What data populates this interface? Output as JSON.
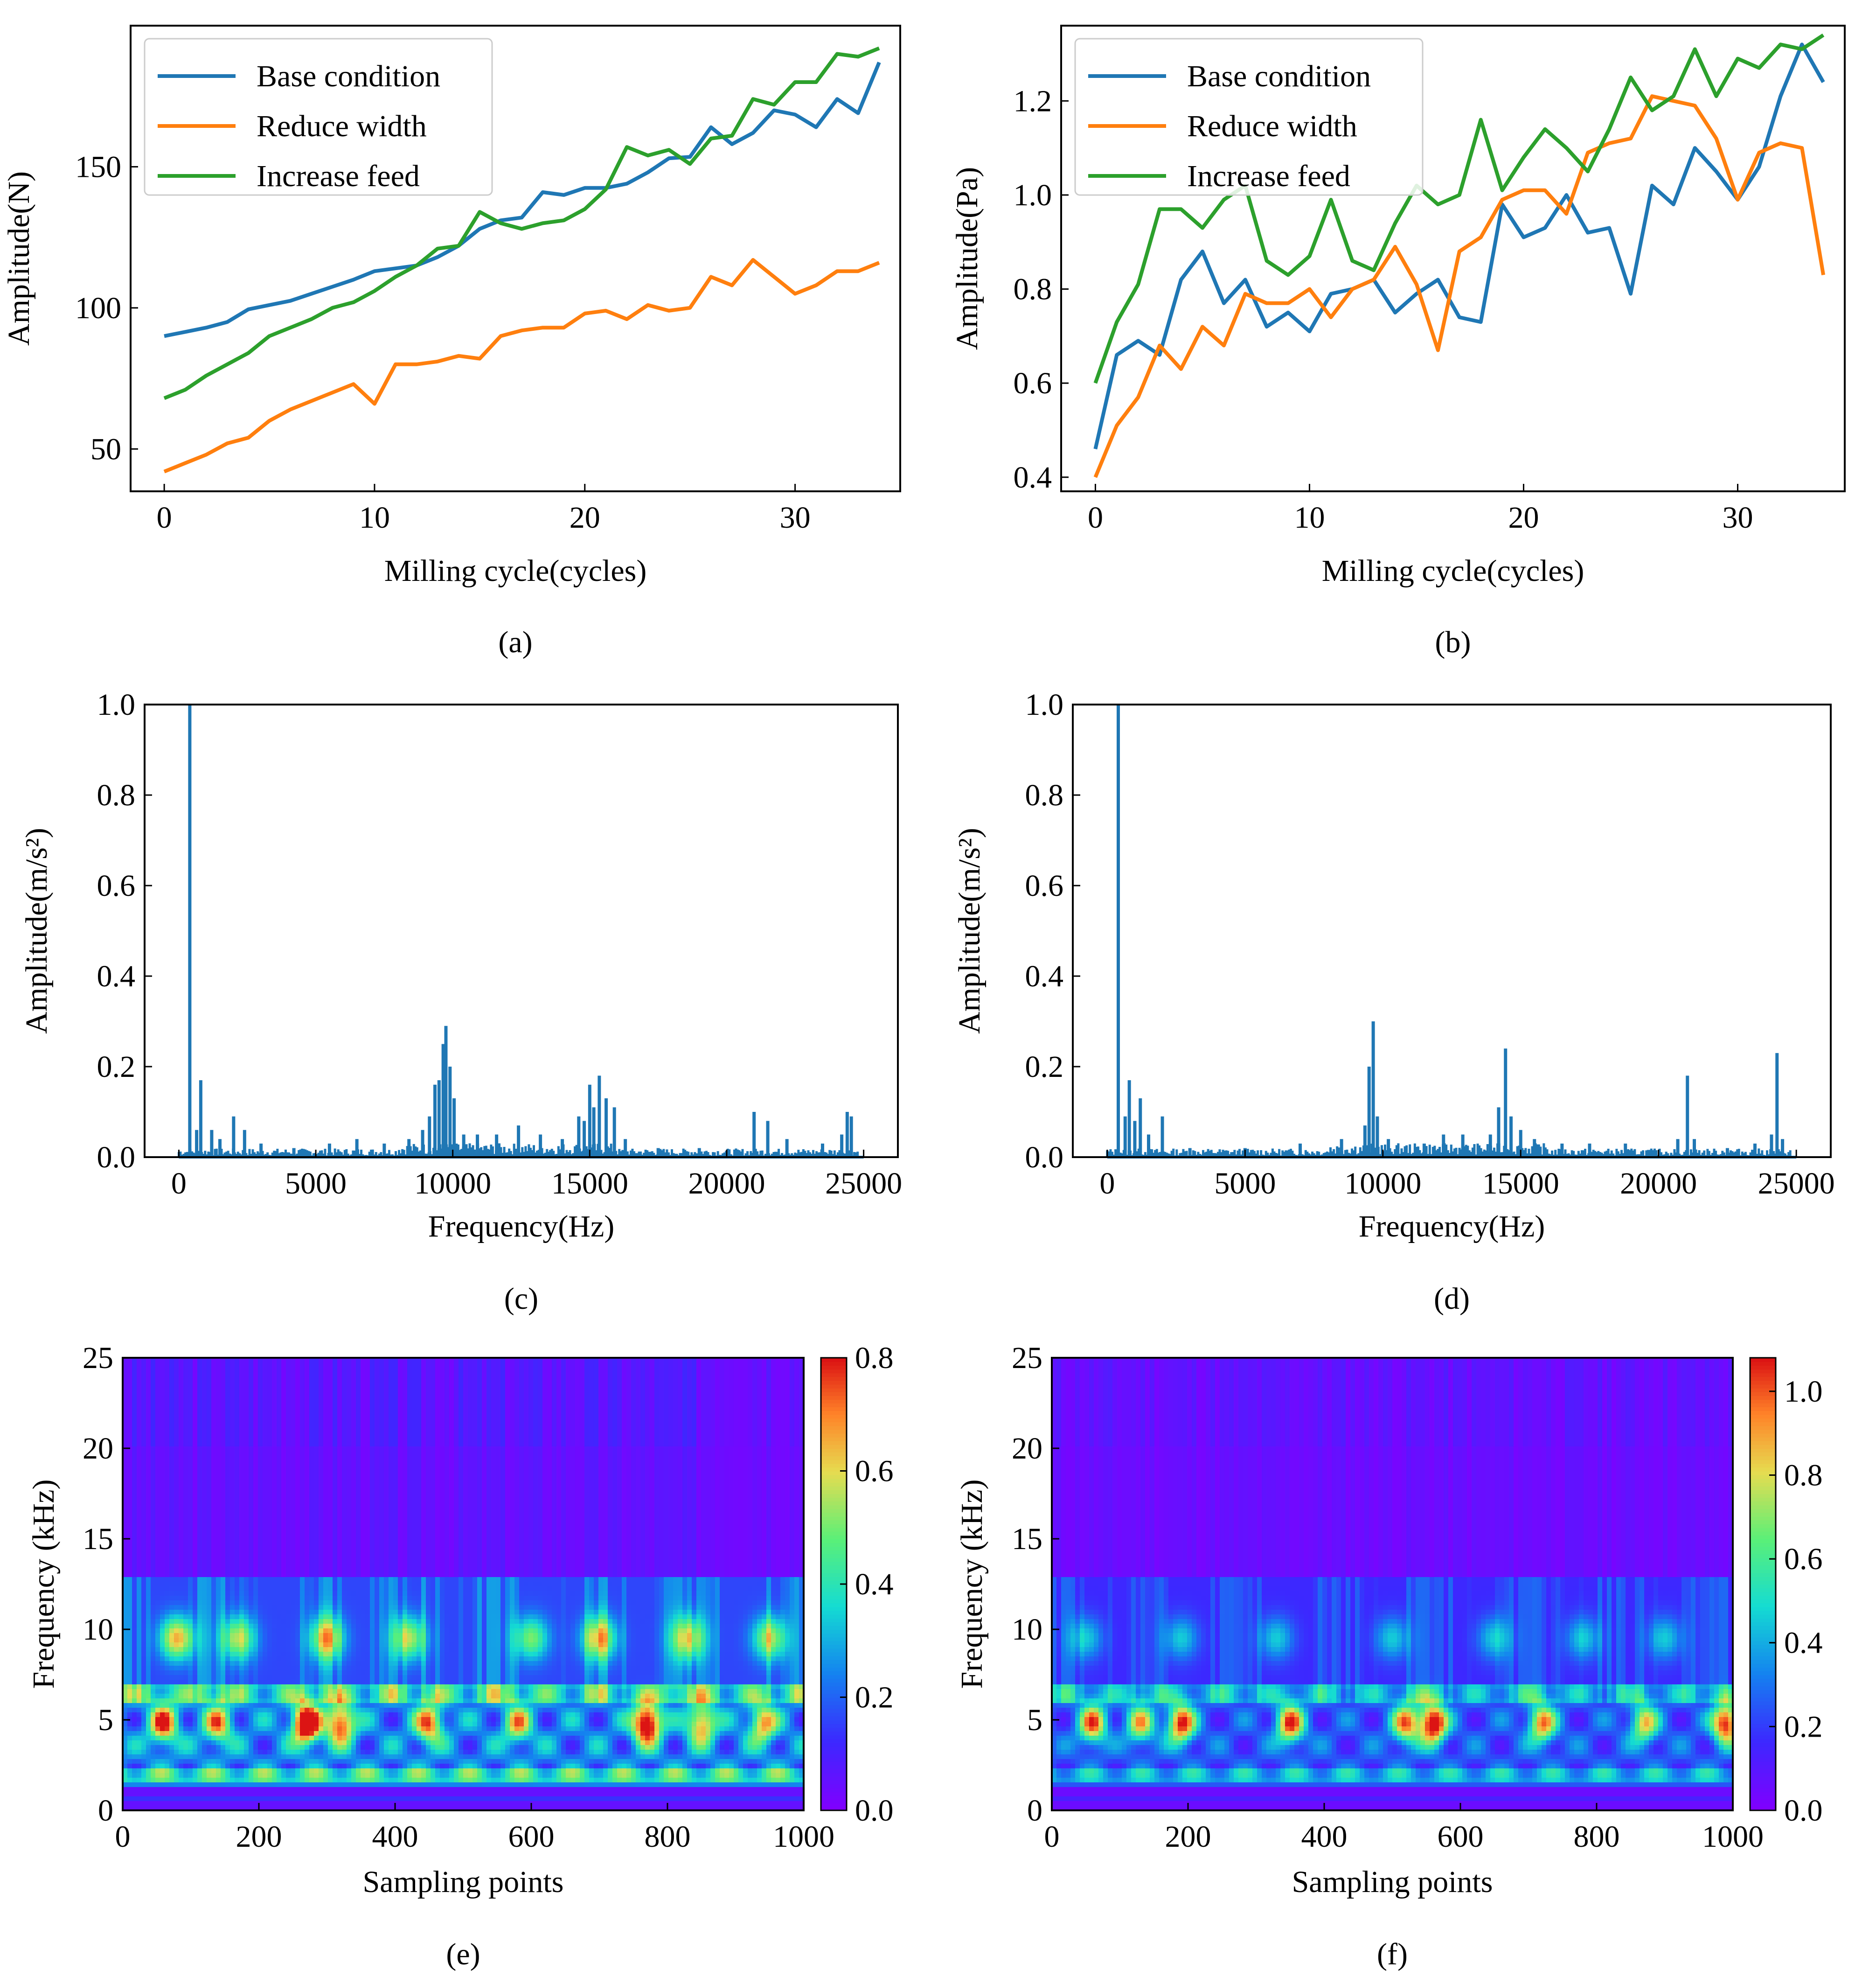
{
  "colors": {
    "base": "#1f77b4",
    "reduce": "#ff7f0e",
    "increase": "#2ca02c",
    "spectrum": "#1f77b4",
    "frame": "#000000"
  },
  "chart_data": [
    {
      "id": "a",
      "type": "line",
      "label": "(a)",
      "xlabel": "Milling cycle(cycles)",
      "ylabel": "Amplitude(N)",
      "xlim": [
        -1.6,
        35
      ],
      "ylim": [
        35,
        200
      ],
      "xticks": [
        0,
        10,
        20,
        30
      ],
      "yticks": [
        50,
        100,
        150
      ],
      "legend": "top-left",
      "x": [
        0,
        1,
        2,
        3,
        4,
        5,
        6,
        7,
        8,
        9,
        10,
        11,
        12,
        13,
        14,
        15,
        16,
        17,
        18,
        19,
        20,
        21,
        22,
        23,
        24,
        25,
        26,
        27,
        28,
        29,
        30,
        31,
        32,
        33,
        34
      ],
      "series": [
        {
          "name": "Base condition",
          "color_key": "base",
          "values": [
            90,
            91.5,
            93,
            95,
            99.5,
            101,
            102.5,
            105,
            107.5,
            110,
            113,
            114,
            115,
            118,
            122,
            128,
            131,
            132,
            141,
            140,
            142.5,
            142.5,
            144,
            148,
            153,
            153.5,
            164,
            158,
            162,
            170,
            168.5,
            164,
            174,
            169,
            187
          ]
        },
        {
          "name": "Reduce width",
          "color_key": "reduce",
          "values": [
            42,
            45,
            48,
            52,
            54,
            60,
            64,
            67,
            70,
            73,
            66,
            80,
            80,
            81,
            83,
            82,
            90,
            92,
            93,
            93,
            98,
            99,
            96,
            101,
            99,
            100,
            111,
            108,
            117,
            111,
            105,
            108,
            113,
            113,
            116
          ]
        },
        {
          "name": "Increase feed",
          "color_key": "increase",
          "values": [
            68,
            71,
            76,
            80,
            84,
            90,
            93,
            96,
            100,
            102,
            106,
            111,
            115,
            121,
            122,
            134,
            130,
            128,
            130,
            131,
            135,
            142,
            157,
            154,
            156,
            151,
            160,
            161,
            174,
            172,
            180,
            180,
            190,
            189,
            192
          ]
        }
      ]
    },
    {
      "id": "b",
      "type": "line",
      "label": "(b)",
      "xlabel": "Milling cycle(cycles)",
      "ylabel": "Amplitude(Pa)",
      "xlim": [
        -1.6,
        35
      ],
      "ylim": [
        0.37,
        1.36
      ],
      "xticks": [
        0,
        10,
        20,
        30
      ],
      "yticks": [
        0.4,
        0.6,
        0.8,
        1.0,
        1.2
      ],
      "ytick_labels": [
        "0.4",
        "0.6",
        "0.8",
        "1.0",
        "1.2"
      ],
      "legend": "top-left",
      "x": [
        0,
        1,
        2,
        3,
        4,
        5,
        6,
        7,
        8,
        9,
        10,
        11,
        12,
        13,
        14,
        15,
        16,
        17,
        18,
        19,
        20,
        21,
        22,
        23,
        24,
        25,
        26,
        27,
        28,
        29,
        30,
        31,
        32,
        33,
        34
      ],
      "series": [
        {
          "name": "Base condition",
          "color_key": "base",
          "values": [
            0.46,
            0.66,
            0.69,
            0.66,
            0.82,
            0.88,
            0.77,
            0.82,
            0.72,
            0.75,
            0.71,
            0.79,
            0.8,
            0.82,
            0.75,
            0.79,
            0.82,
            0.74,
            0.73,
            0.98,
            0.91,
            0.93,
            1.0,
            0.92,
            0.93,
            0.79,
            1.02,
            0.98,
            1.1,
            1.05,
            0.99,
            1.06,
            1.21,
            1.32,
            1.24
          ]
        },
        {
          "name": "Reduce width",
          "color_key": "reduce",
          "values": [
            0.4,
            0.51,
            0.57,
            0.68,
            0.63,
            0.72,
            0.68,
            0.79,
            0.77,
            0.77,
            0.8,
            0.74,
            0.8,
            0.82,
            0.89,
            0.81,
            0.67,
            0.88,
            0.91,
            0.99,
            1.01,
            1.01,
            0.96,
            1.09,
            1.11,
            1.12,
            1.21,
            1.2,
            1.19,
            1.12,
            0.99,
            1.09,
            1.11,
            1.1,
            0.83
          ]
        },
        {
          "name": "Increase feed",
          "color_key": "increase",
          "values": [
            0.6,
            0.73,
            0.81,
            0.97,
            0.97,
            0.93,
            0.99,
            1.02,
            0.86,
            0.83,
            0.87,
            0.99,
            0.86,
            0.84,
            0.94,
            1.02,
            0.98,
            1.0,
            1.16,
            1.01,
            1.08,
            1.14,
            1.1,
            1.05,
            1.14,
            1.25,
            1.18,
            1.21,
            1.31,
            1.21,
            1.29,
            1.27,
            1.32,
            1.31,
            1.34
          ]
        }
      ]
    },
    {
      "id": "c",
      "type": "bar",
      "label": "(c)",
      "xlabel": "Frequency(Hz)",
      "ylabel": "Amplitude(m/s²)",
      "xlim": [
        -1250,
        26250
      ],
      "ylim": [
        0,
        1.0
      ],
      "xticks": [
        0,
        5000,
        10000,
        15000,
        20000,
        25000
      ],
      "yticks": [
        0.0,
        0.2,
        0.4,
        0.6,
        0.8,
        1.0
      ],
      "ytick_labels": [
        "0.0",
        "0.2",
        "0.4",
        "0.6",
        "0.8",
        "1.0"
      ],
      "peaks": [
        [
          400,
          1.0
        ],
        [
          650,
          0.06
        ],
        [
          800,
          0.17
        ],
        [
          1200,
          0.06
        ],
        [
          1500,
          0.04
        ],
        [
          2000,
          0.09
        ],
        [
          2400,
          0.06
        ],
        [
          3000,
          0.03
        ],
        [
          4200,
          0.02
        ],
        [
          5500,
          0.03
        ],
        [
          6500,
          0.04
        ],
        [
          7500,
          0.03
        ],
        [
          8400,
          0.04
        ],
        [
          8900,
          0.06
        ],
        [
          9150,
          0.09
        ],
        [
          9350,
          0.16
        ],
        [
          9500,
          0.17
        ],
        [
          9650,
          0.25
        ],
        [
          9750,
          0.29
        ],
        [
          9900,
          0.2
        ],
        [
          10050,
          0.13
        ],
        [
          10400,
          0.05
        ],
        [
          10900,
          0.05
        ],
        [
          11600,
          0.05
        ],
        [
          12400,
          0.07
        ],
        [
          13200,
          0.05
        ],
        [
          14000,
          0.04
        ],
        [
          14600,
          0.09
        ],
        [
          14800,
          0.08
        ],
        [
          15000,
          0.16
        ],
        [
          15150,
          0.11
        ],
        [
          15350,
          0.18
        ],
        [
          15600,
          0.13
        ],
        [
          15900,
          0.11
        ],
        [
          16300,
          0.04
        ],
        [
          17500,
          0.02
        ],
        [
          19000,
          0.02
        ],
        [
          21000,
          0.1
        ],
        [
          21500,
          0.08
        ],
        [
          22200,
          0.04
        ],
        [
          23500,
          0.03
        ],
        [
          24200,
          0.05
        ],
        [
          24400,
          0.1
        ],
        [
          24550,
          0.09
        ]
      ],
      "noise_floor": 0.012
    },
    {
      "id": "d",
      "type": "bar",
      "label": "(d)",
      "xlabel": "Frequency(Hz)",
      "ylabel": "Amplitude(m/s²)",
      "xlim": [
        -1250,
        26250
      ],
      "ylim": [
        0,
        1.0
      ],
      "xticks": [
        0,
        5000,
        10000,
        15000,
        20000,
        25000
      ],
      "yticks": [
        0.0,
        0.2,
        0.4,
        0.6,
        0.8,
        1.0
      ],
      "ytick_labels": [
        "0.0",
        "0.2",
        "0.4",
        "0.6",
        "0.8",
        "1.0"
      ],
      "peaks": [
        [
          400,
          1.0
        ],
        [
          650,
          0.09
        ],
        [
          800,
          0.17
        ],
        [
          1000,
          0.08
        ],
        [
          1200,
          0.13
        ],
        [
          1500,
          0.05
        ],
        [
          2000,
          0.09
        ],
        [
          3000,
          0.02
        ],
        [
          5000,
          0.02
        ],
        [
          7000,
          0.03
        ],
        [
          8500,
          0.04
        ],
        [
          9350,
          0.07
        ],
        [
          9500,
          0.2
        ],
        [
          9650,
          0.3
        ],
        [
          9800,
          0.09
        ],
        [
          10200,
          0.04
        ],
        [
          11500,
          0.03
        ],
        [
          12200,
          0.05
        ],
        [
          12900,
          0.05
        ],
        [
          13900,
          0.05
        ],
        [
          14200,
          0.11
        ],
        [
          14450,
          0.24
        ],
        [
          14650,
          0.09
        ],
        [
          15000,
          0.06
        ],
        [
          15500,
          0.04
        ],
        [
          16500,
          0.03
        ],
        [
          17500,
          0.03
        ],
        [
          18800,
          0.03
        ],
        [
          20700,
          0.04
        ],
        [
          21050,
          0.18
        ],
        [
          21300,
          0.04
        ],
        [
          22500,
          0.02
        ],
        [
          23500,
          0.03
        ],
        [
          24100,
          0.05
        ],
        [
          24300,
          0.23
        ],
        [
          24500,
          0.04
        ]
      ],
      "noise_floor": 0.012
    },
    {
      "id": "e",
      "type": "heatmap",
      "label": "(e)",
      "xlabel": "Sampling points",
      "ylabel": "Frequency (kHz)",
      "xlim": [
        0,
        1000
      ],
      "ylim": [
        0,
        25
      ],
      "xticks": [
        0,
        200,
        400,
        600,
        800,
        1000
      ],
      "yticks": [
        0,
        5,
        10,
        15,
        20,
        25
      ],
      "colorbar": {
        "min": 0.0,
        "max": 0.8,
        "ticks": [
          0.0,
          0.2,
          0.4,
          0.6,
          0.8
        ],
        "tick_labels": [
          "0.0",
          "0.2",
          "0.4",
          "0.6",
          "0.8"
        ]
      },
      "hotspots_5khz": [
        [
          60,
          0.55
        ],
        [
          140,
          0.45
        ],
        [
          270,
          0.8
        ],
        [
          320,
          0.6
        ],
        [
          450,
          0.5
        ],
        [
          580,
          0.4
        ],
        [
          770,
          0.75
        ],
        [
          850,
          0.5
        ],
        [
          940,
          0.45
        ]
      ],
      "hotspots_10khz": [
        [
          80,
          0.5
        ],
        [
          170,
          0.4
        ],
        [
          300,
          0.45
        ],
        [
          420,
          0.4
        ],
        [
          600,
          0.35
        ],
        [
          700,
          0.45
        ],
        [
          830,
          0.4
        ],
        [
          950,
          0.4
        ]
      ]
    },
    {
      "id": "f",
      "type": "heatmap",
      "label": "(f)",
      "xlabel": "Sampling points",
      "ylabel": "Frequency (kHz)",
      "xlim": [
        0,
        1000
      ],
      "ylim": [
        0,
        25
      ],
      "xticks": [
        0,
        200,
        400,
        600,
        800,
        1000
      ],
      "yticks": [
        0,
        5,
        10,
        15,
        20,
        25
      ],
      "colorbar": {
        "min": 0.0,
        "max": 1.08,
        "ticks": [
          0.0,
          0.2,
          0.4,
          0.6,
          0.8,
          1.0
        ],
        "tick_labels": [
          "0.0",
          "0.2",
          "0.4",
          "0.6",
          "0.8",
          "1.0"
        ]
      },
      "hotspots_5khz": [
        [
          60,
          0.75
        ],
        [
          130,
          0.6
        ],
        [
          190,
          0.85
        ],
        [
          350,
          0.8
        ],
        [
          520,
          0.7
        ],
        [
          560,
          1.0
        ],
        [
          720,
          0.7
        ],
        [
          870,
          0.6
        ],
        [
          990,
          0.9
        ]
      ],
      "hotspots_10khz": [
        [
          50,
          0.3
        ],
        [
          190,
          0.3
        ],
        [
          330,
          0.3
        ],
        [
          500,
          0.3
        ],
        [
          650,
          0.3
        ],
        [
          780,
          0.3
        ],
        [
          900,
          0.3
        ]
      ]
    }
  ]
}
